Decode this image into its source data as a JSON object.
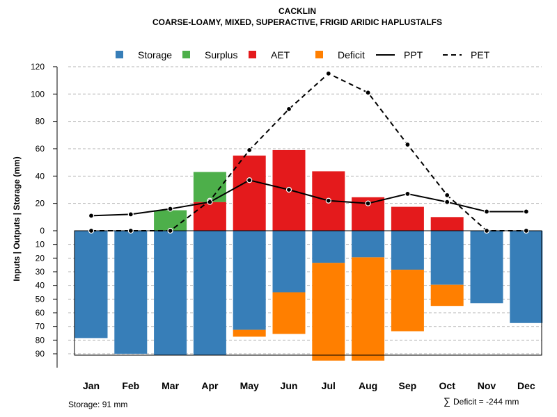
{
  "title": "CACKLIN",
  "subtitle": "COARSE-LOAMY, MIXED, SUPERACTIVE, FRIGID ARIDIC HAPLUSTALFS",
  "footer_left": "Storage: 91 mm",
  "footer_right_symbol": "∑",
  "footer_right": "Deficit = -244 mm",
  "chart_data": {
    "type": "bar",
    "title": "CACKLIN",
    "subtitle": "COARSE-LOAMY, MIXED, SUPERACTIVE, FRIGID ARIDIC HAPLUSTALFS",
    "ylabel": "Inputs | Outputs | Storage    (mm)",
    "ylim_top": [
      0,
      120
    ],
    "ylim_bottom": [
      0,
      91
    ],
    "ticks_top": [
      "0",
      "20",
      "40",
      "60",
      "80",
      "100",
      "120"
    ],
    "ticks_bottom": [
      "10",
      "20",
      "30",
      "40",
      "50",
      "60",
      "70",
      "80",
      "90"
    ],
    "categories": [
      "Jan",
      "Feb",
      "Mar",
      "Apr",
      "May",
      "Jun",
      "Jul",
      "Aug",
      "Sep",
      "Oct",
      "Nov",
      "Dec"
    ],
    "legend": [
      {
        "label": "Storage",
        "type": "box",
        "color": "#377eb8"
      },
      {
        "label": "Surplus",
        "type": "box",
        "color": "#4daf4a"
      },
      {
        "label": "AET",
        "type": "box",
        "color": "#e41a1c"
      },
      {
        "label": "Deficit",
        "type": "box",
        "color": "#ff7f00"
      },
      {
        "label": "PPT",
        "type": "solid",
        "color": "#000000"
      },
      {
        "label": "PET",
        "type": "dashed",
        "color": "#000000"
      }
    ],
    "series": [
      {
        "name": "Surplus",
        "color": "#4daf4a",
        "values": [
          0,
          0,
          15,
          22,
          0,
          0,
          0,
          0,
          0,
          0,
          0,
          0
        ]
      },
      {
        "name": "AET",
        "color": "#e41a1c",
        "values": [
          0,
          0,
          0,
          21,
          55,
          59,
          43.5,
          24.5,
          17.5,
          10,
          0,
          0
        ]
      },
      {
        "name": "Storage",
        "color": "#377eb8",
        "values": [
          78.5,
          90,
          91,
          91,
          72.5,
          45,
          23.5,
          19.5,
          28.5,
          39.5,
          53,
          67.5
        ]
      },
      {
        "name": "Deficit",
        "color": "#ff7f00",
        "values": [
          0,
          0,
          0,
          0,
          5,
          30.5,
          71.5,
          75.5,
          45,
          15.5,
          0,
          0
        ]
      },
      {
        "name": "PPT",
        "color": "#000000",
        "values": [
          11,
          12,
          16,
          21,
          37,
          30,
          22,
          20,
          27,
          21,
          14,
          14
        ]
      },
      {
        "name": "PET",
        "color": "#000000",
        "values": [
          0,
          0,
          0,
          22,
          59,
          89,
          115,
          101,
          63,
          26,
          0,
          0
        ]
      }
    ],
    "storage_capacity": 91
  }
}
